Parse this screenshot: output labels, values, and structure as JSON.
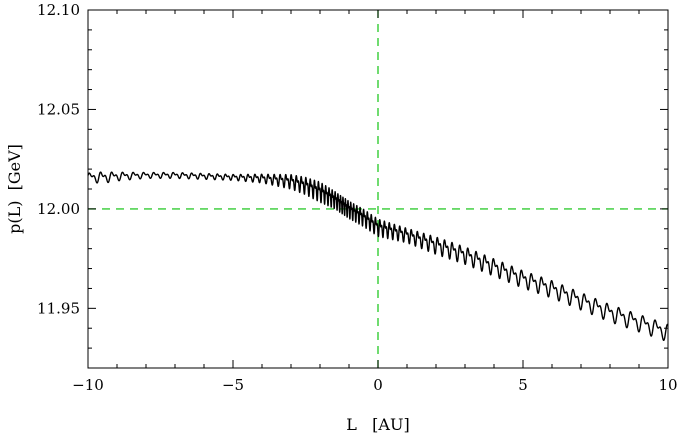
{
  "chart_data": {
    "type": "line",
    "title": "",
    "xlabel": "L   [AU]",
    "ylabel": "p(L)  [GeV]",
    "xlim": [
      -10,
      10
    ],
    "ylim": [
      11.92,
      12.1
    ],
    "x_ticks": [
      {
        "value": -10,
        "label": "−10"
      },
      {
        "value": -5,
        "label": "−5"
      },
      {
        "value": 0,
        "label": "0"
      },
      {
        "value": 5,
        "label": "5"
      },
      {
        "value": 10,
        "label": "10"
      }
    ],
    "y_ticks": [
      {
        "value": 11.95,
        "label": "11.95"
      },
      {
        "value": 12.0,
        "label": "12.00"
      },
      {
        "value": 12.05,
        "label": "12.05"
      },
      {
        "value": 12.1,
        "label": "12.10"
      }
    ],
    "reference_lines": {
      "vertical_x": 0,
      "horizontal_y": 12.0,
      "color": "#33cc33",
      "style": "dashed"
    },
    "grid": false,
    "series": [
      {
        "color": "#000000",
        "x": [
          -10,
          -9.5,
          -9,
          -8,
          -7,
          -6,
          -5,
          -4,
          -3,
          -2.5,
          -2,
          -1.5,
          -1,
          -0.5,
          0,
          1,
          2,
          3,
          4,
          5,
          6,
          7,
          8,
          9,
          10
        ],
        "y": [
          12.016,
          12.016,
          12.0165,
          12.017,
          12.017,
          12.0165,
          12.016,
          12.0155,
          12.014,
          12.012,
          12.009,
          12.005,
          12.0,
          11.996,
          11.991,
          11.987,
          11.982,
          11.977,
          11.971,
          11.965,
          11.96,
          11.954,
          11.948,
          11.943,
          11.938
        ],
        "oscillation_amplitude": [
          0.003,
          0.004,
          0.003,
          0.002,
          0.002,
          0.002,
          0.002,
          0.003,
          0.005,
          0.006,
          0.007,
          0.006,
          0.006,
          0.006,
          0.006,
          0.005,
          0.006,
          0.006,
          0.006,
          0.006,
          0.006,
          0.006,
          0.006,
          0.006,
          0.006
        ]
      }
    ]
  }
}
